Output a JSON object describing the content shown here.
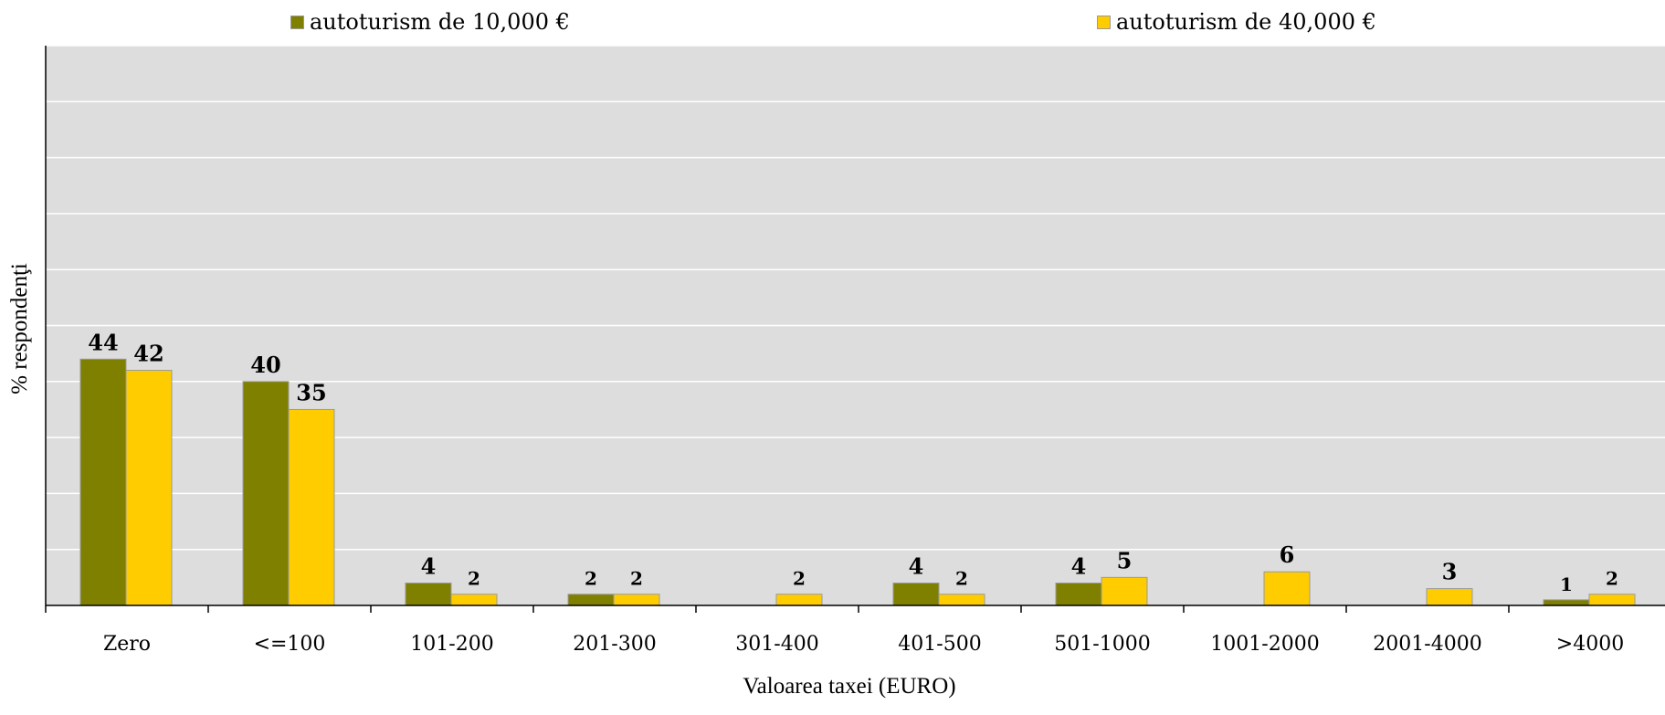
{
  "chart_data": {
    "type": "bar",
    "categories": [
      "Zero",
      "<=100",
      "101-200",
      "201-300",
      "301-400",
      "401-500",
      "501-1000",
      "1001-2000",
      "2001-4000",
      ">4000"
    ],
    "series": [
      {
        "name": "autoturism de 10,000 €",
        "values": [
          44,
          40,
          4,
          2,
          0,
          4,
          4,
          0,
          0,
          1
        ],
        "labels": [
          "44",
          "40",
          "4",
          "2",
          "",
          "4",
          "4",
          "",
          "",
          "1"
        ],
        "color": "#808000"
      },
      {
        "name": "autoturism de 40,000 €",
        "values": [
          42,
          35,
          2,
          2,
          2,
          2,
          5,
          6,
          3,
          2
        ],
        "labels": [
          "42",
          "35",
          "2",
          "2",
          "2",
          "2",
          "5",
          "6",
          "3",
          "2"
        ],
        "color": "#FFCC00"
      }
    ],
    "xlabel": "Valoarea taxei (EURO)",
    "ylabel": "% respondenţi",
    "ylim": [
      0,
      100
    ],
    "grid": true,
    "legend": "top",
    "plot_background": "#DDDDDD"
  }
}
